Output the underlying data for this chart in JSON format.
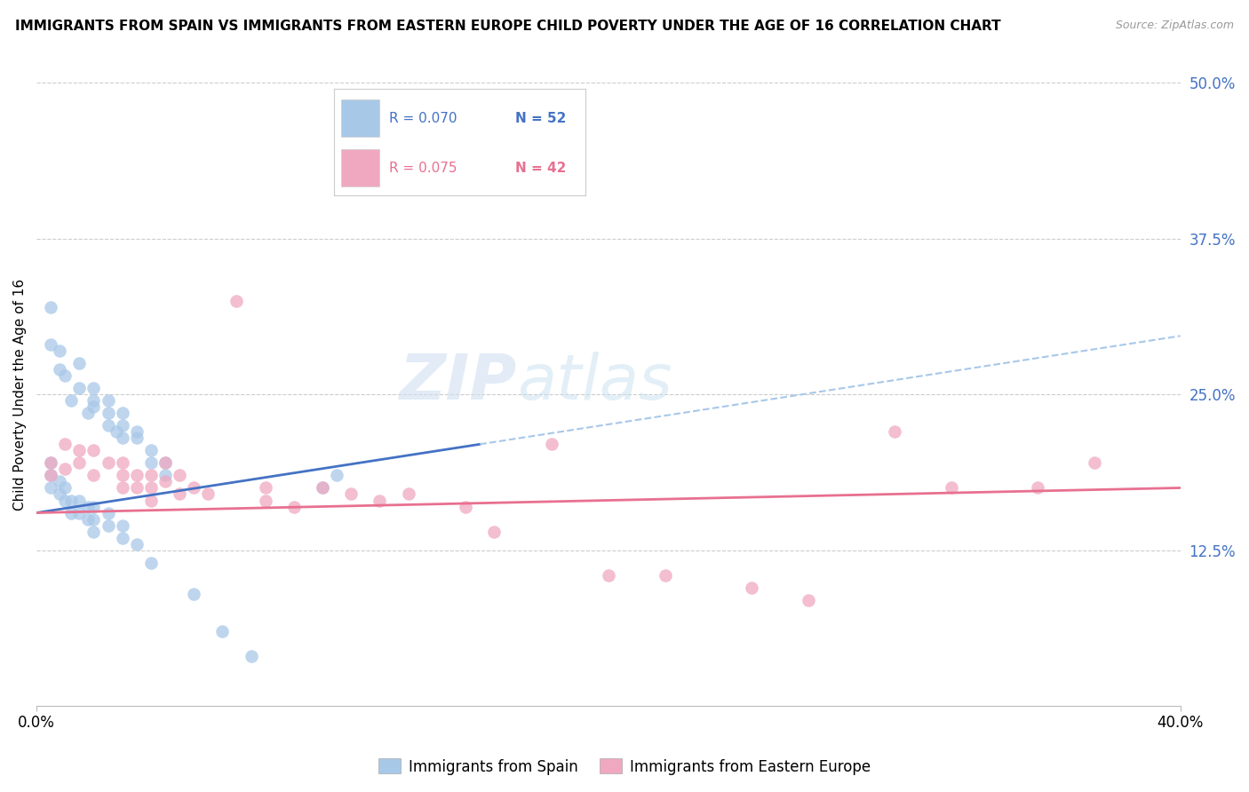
{
  "title": "IMMIGRANTS FROM SPAIN VS IMMIGRANTS FROM EASTERN EUROPE CHILD POVERTY UNDER THE AGE OF 16 CORRELATION CHART",
  "source": "Source: ZipAtlas.com",
  "ylabel": "Child Poverty Under the Age of 16",
  "ylim": [
    0,
    0.5
  ],
  "xlim": [
    0,
    0.4
  ],
  "watermark": "ZIPatlas",
  "blue_color": "#A8C8E8",
  "pink_color": "#F0A8C0",
  "blue_line_color": "#4472C4",
  "pink_line_color": "#E87090",
  "blue_dashed_color": "#A8C8E8",
  "scatter_spain": [
    [
      0.005,
      0.32
    ],
    [
      0.005,
      0.29
    ],
    [
      0.008,
      0.285
    ],
    [
      0.008,
      0.27
    ],
    [
      0.01,
      0.265
    ],
    [
      0.012,
      0.245
    ],
    [
      0.015,
      0.275
    ],
    [
      0.015,
      0.255
    ],
    [
      0.018,
      0.235
    ],
    [
      0.02,
      0.255
    ],
    [
      0.02,
      0.245
    ],
    [
      0.02,
      0.24
    ],
    [
      0.025,
      0.245
    ],
    [
      0.025,
      0.235
    ],
    [
      0.025,
      0.225
    ],
    [
      0.028,
      0.22
    ],
    [
      0.03,
      0.235
    ],
    [
      0.03,
      0.225
    ],
    [
      0.03,
      0.215
    ],
    [
      0.035,
      0.22
    ],
    [
      0.035,
      0.215
    ],
    [
      0.04,
      0.205
    ],
    [
      0.04,
      0.195
    ],
    [
      0.045,
      0.195
    ],
    [
      0.045,
      0.185
    ],
    [
      0.005,
      0.195
    ],
    [
      0.005,
      0.185
    ],
    [
      0.005,
      0.175
    ],
    [
      0.008,
      0.18
    ],
    [
      0.008,
      0.17
    ],
    [
      0.01,
      0.175
    ],
    [
      0.01,
      0.165
    ],
    [
      0.012,
      0.165
    ],
    [
      0.012,
      0.155
    ],
    [
      0.015,
      0.165
    ],
    [
      0.015,
      0.155
    ],
    [
      0.018,
      0.16
    ],
    [
      0.018,
      0.15
    ],
    [
      0.02,
      0.16
    ],
    [
      0.02,
      0.15
    ],
    [
      0.02,
      0.14
    ],
    [
      0.025,
      0.155
    ],
    [
      0.025,
      0.145
    ],
    [
      0.03,
      0.145
    ],
    [
      0.03,
      0.135
    ],
    [
      0.035,
      0.13
    ],
    [
      0.04,
      0.115
    ],
    [
      0.055,
      0.09
    ],
    [
      0.065,
      0.06
    ],
    [
      0.075,
      0.04
    ],
    [
      0.1,
      0.175
    ],
    [
      0.105,
      0.185
    ]
  ],
  "scatter_eastern": [
    [
      0.005,
      0.195
    ],
    [
      0.005,
      0.185
    ],
    [
      0.01,
      0.21
    ],
    [
      0.01,
      0.19
    ],
    [
      0.015,
      0.205
    ],
    [
      0.015,
      0.195
    ],
    [
      0.02,
      0.205
    ],
    [
      0.02,
      0.185
    ],
    [
      0.025,
      0.195
    ],
    [
      0.03,
      0.195
    ],
    [
      0.03,
      0.185
    ],
    [
      0.03,
      0.175
    ],
    [
      0.035,
      0.185
    ],
    [
      0.035,
      0.175
    ],
    [
      0.04,
      0.185
    ],
    [
      0.04,
      0.175
    ],
    [
      0.04,
      0.165
    ],
    [
      0.045,
      0.195
    ],
    [
      0.045,
      0.18
    ],
    [
      0.05,
      0.185
    ],
    [
      0.05,
      0.17
    ],
    [
      0.055,
      0.175
    ],
    [
      0.06,
      0.17
    ],
    [
      0.07,
      0.325
    ],
    [
      0.08,
      0.175
    ],
    [
      0.08,
      0.165
    ],
    [
      0.09,
      0.16
    ],
    [
      0.1,
      0.175
    ],
    [
      0.11,
      0.17
    ],
    [
      0.12,
      0.165
    ],
    [
      0.13,
      0.17
    ],
    [
      0.15,
      0.16
    ],
    [
      0.16,
      0.14
    ],
    [
      0.18,
      0.21
    ],
    [
      0.2,
      0.105
    ],
    [
      0.22,
      0.105
    ],
    [
      0.25,
      0.095
    ],
    [
      0.27,
      0.085
    ],
    [
      0.3,
      0.22
    ],
    [
      0.32,
      0.175
    ],
    [
      0.35,
      0.175
    ],
    [
      0.37,
      0.195
    ]
  ],
  "blue_line_x": [
    0.0,
    0.155
  ],
  "blue_line_y_start": 0.155,
  "blue_line_y_end": 0.21,
  "pink_line_y_start": 0.155,
  "pink_line_y_end": 0.175
}
